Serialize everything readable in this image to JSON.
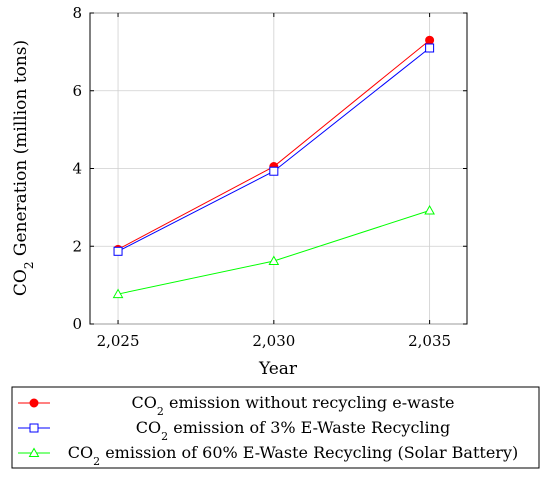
{
  "chart_data": {
    "type": "line",
    "title": "",
    "xlabel": "Year",
    "ylabel": {
      "prefix": "CO",
      "sub": "2",
      "suffix": " Generation (million tons)"
    },
    "x": [
      2025,
      2030,
      2035
    ],
    "x_tick_labels": [
      "2,025",
      "2,030",
      "2,035"
    ],
    "xlim": [
      2024.1,
      2036.2
    ],
    "ylim": [
      0,
      8
    ],
    "y_ticks": [
      0,
      2,
      4,
      6,
      8
    ],
    "y_tick_labels": [
      "0",
      "2",
      "4",
      "6",
      "8"
    ],
    "grid": true,
    "legend_placement": "below-plot",
    "series": [
      {
        "name": "CO2 emission without recycling e-waste",
        "legend_prefix": "CO",
        "legend_sub": "2",
        "legend_suffix": " emission without recycling e-waste",
        "values": [
          1.92,
          4.05,
          7.3
        ],
        "color": "#ff0000",
        "marker": "filled-circle"
      },
      {
        "name": "CO2 emission of 3% E-Waste Recycling",
        "legend_prefix": "CO",
        "legend_sub": "2",
        "legend_suffix": " emission of 3% E-Waste Recycling",
        "values": [
          1.87,
          3.93,
          7.1
        ],
        "color": "#0000ff",
        "marker": "open-square"
      },
      {
        "name": "CO2 emission of 60% E-Waste Recycling (Solar Battery)",
        "legend_prefix": "CO",
        "legend_sub": "2",
        "legend_suffix": " emission of 60% E-Waste Recycling (Solar Battery)",
        "values": [
          0.77,
          1.62,
          2.92
        ],
        "color": "#00ff00",
        "marker": "open-triangle"
      }
    ]
  }
}
